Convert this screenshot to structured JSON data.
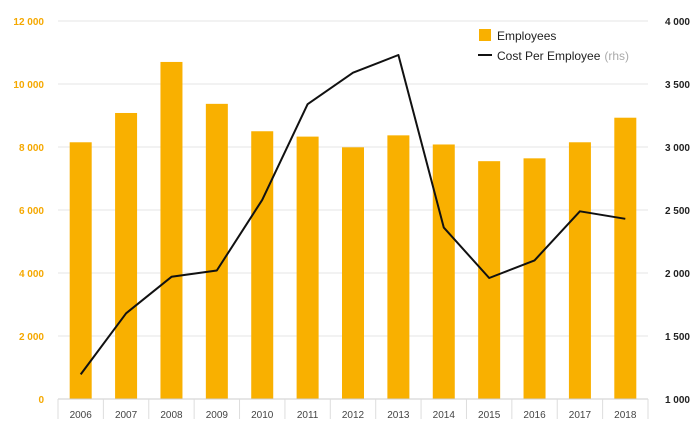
{
  "colors": {
    "bar": "#f9b000",
    "line": "#111111",
    "grid": "#e6e6e6",
    "left_axis_text": "#f5a800",
    "right_axis_text": "#222222"
  },
  "chart_data": {
    "type": "bar",
    "categories": [
      "2006",
      "2007",
      "2008",
      "2009",
      "2010",
      "2011",
      "2012",
      "2013",
      "2014",
      "2015",
      "2016",
      "2017",
      "2018"
    ],
    "series": [
      {
        "name": "Employees",
        "type": "bar",
        "axis": "left",
        "values": [
          8150,
          9080,
          10700,
          9370,
          8500,
          8330,
          7990,
          8370,
          8080,
          7550,
          7640,
          8150,
          8930
        ]
      },
      {
        "name": "Cost Per Employee",
        "type": "line",
        "axis": "right",
        "values": [
          1195,
          1680,
          1970,
          2020,
          2580,
          3340,
          3590,
          3730,
          2360,
          1960,
          2100,
          2490,
          2430
        ]
      }
    ],
    "y_left": {
      "lim": [
        0,
        12000
      ],
      "ticks": [
        0,
        2000,
        4000,
        6000,
        8000,
        10000,
        12000
      ],
      "tick_labels": [
        "0",
        "2 000",
        "4 000",
        "6 000",
        "8 000",
        "10 000",
        "12 000"
      ]
    },
    "y_right": {
      "lim": [
        1000,
        4000
      ],
      "ticks": [
        1000,
        1500,
        2000,
        2500,
        3000,
        3500,
        4000
      ],
      "tick_labels": [
        "1 000",
        "1 500",
        "2 000",
        "2 500",
        "3 000",
        "3 500",
        "4 000"
      ]
    },
    "legend": {
      "position": "top-right",
      "items": [
        {
          "label": "Employees",
          "suffix": "",
          "marker": "square"
        },
        {
          "label": "Cost Per Employee",
          "suffix": "(rhs)",
          "marker": "line"
        }
      ]
    },
    "grid": true
  }
}
